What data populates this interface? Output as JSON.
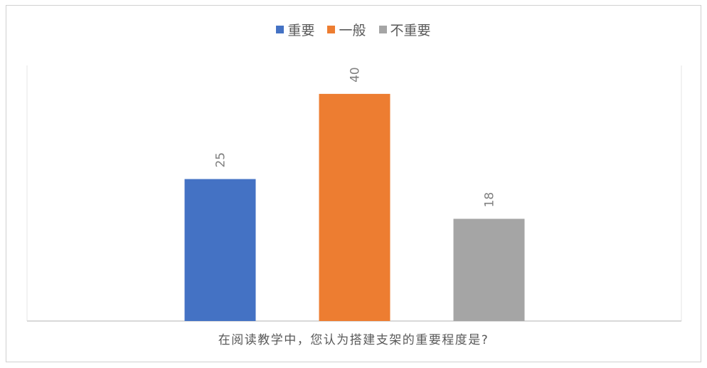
{
  "chart_data": {
    "type": "bar",
    "categories": [
      "在阅读教学中，您认为搭建支架的重要程度是?"
    ],
    "series": [
      {
        "name": "重要",
        "values": [
          25
        ],
        "color": "#4472C4"
      },
      {
        "name": "一般",
        "values": [
          40
        ],
        "color": "#ED7D31"
      },
      {
        "name": "不重要",
        "values": [
          18
        ],
        "color": "#A5A5A5"
      }
    ],
    "ylim": [
      0,
      45
    ],
    "legend_position": "top",
    "grid": false,
    "data_labels": true,
    "axis_color": "#d9d9d9",
    "label_color": "#7f7f7f"
  }
}
